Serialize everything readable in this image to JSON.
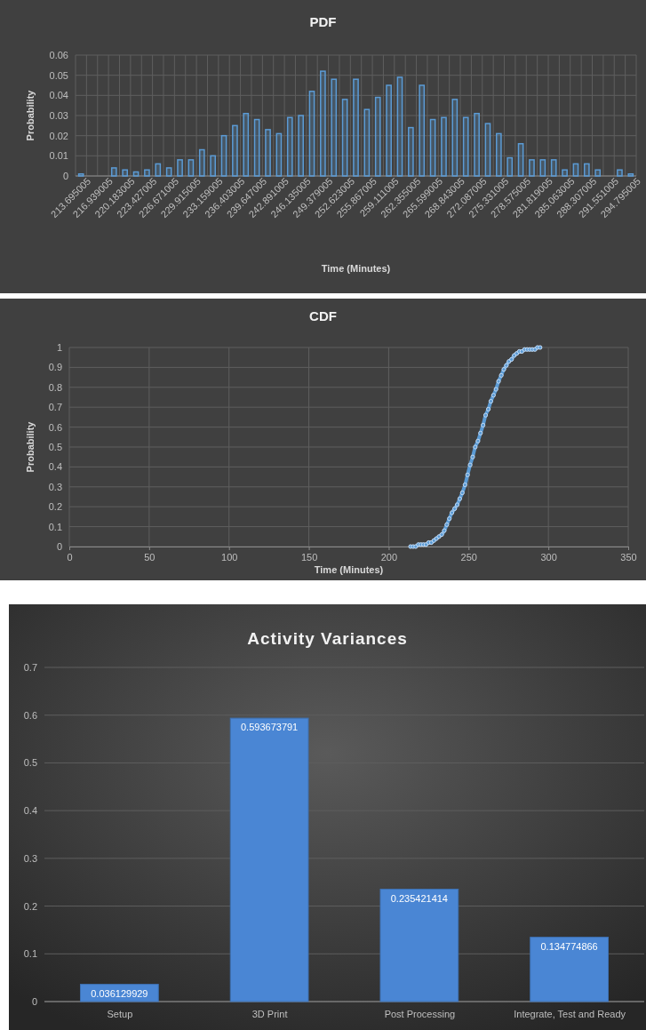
{
  "chart_data": [
    {
      "type": "bar",
      "title": "PDF",
      "xlabel": "Time (Minutes)",
      "ylabel": "Probability",
      "categories": [
        "213.695005",
        null,
        "216.939005",
        null,
        "220.183005",
        null,
        "223.427005",
        null,
        "226.671005",
        null,
        "229.915005",
        null,
        "233.159005",
        null,
        "236.403005",
        null,
        "239.647005",
        null,
        "242.891005",
        null,
        "246.135005",
        null,
        "249.379005",
        null,
        "252.623005",
        null,
        "255.867005",
        null,
        "259.111005",
        null,
        "262.355005",
        null,
        "265.599005",
        null,
        "268.843005",
        null,
        "272.087005",
        null,
        "275.331005",
        null,
        "278.575005",
        null,
        "281.819005",
        null,
        "285.063005",
        null,
        "288.307005",
        null,
        "291.551005",
        null,
        "294.795005"
      ],
      "values": [
        0.001,
        0,
        0,
        0.004,
        0.003,
        0.002,
        0.003,
        0.006,
        0.004,
        0.008,
        0.008,
        0.013,
        0.01,
        0.02,
        0.025,
        0.031,
        0.028,
        0.023,
        0.021,
        0.029,
        0.03,
        0.042,
        0.052,
        0.048,
        0.038,
        0.048,
        0.033,
        0.039,
        0.045,
        0.049,
        0.024,
        0.045,
        0.028,
        0.029,
        0.038,
        0.029,
        0.031,
        0.026,
        0.021,
        0.009,
        0.016,
        0.008,
        0.008,
        0.008,
        0.003,
        0.006,
        0.006,
        0.003,
        0,
        0.003,
        0.001
      ],
      "color": "#5b9bd5",
      "ylim": [
        0,
        0.06
      ],
      "yticks": [
        0,
        0.01,
        0.02,
        0.03,
        0.04,
        0.05,
        0.06
      ],
      "grid": true
    },
    {
      "type": "line",
      "title": "CDF",
      "xlabel": "Time (Minutes)",
      "ylabel": "Probability",
      "x": [
        213.7,
        215.3,
        216.9,
        218.6,
        220.2,
        221.8,
        223.4,
        225.0,
        226.7,
        228.3,
        229.9,
        231.5,
        233.2,
        234.8,
        236.4,
        238.0,
        239.6,
        241.3,
        242.9,
        244.5,
        246.1,
        247.8,
        249.4,
        251.0,
        252.6,
        254.2,
        255.9,
        257.5,
        259.1,
        260.7,
        262.4,
        264.0,
        265.6,
        267.2,
        268.8,
        270.5,
        272.1,
        273.7,
        275.3,
        276.9,
        278.6,
        280.2,
        281.8,
        283.4,
        285.1,
        286.7,
        288.3,
        289.9,
        291.6,
        293.2,
        294.8
      ],
      "values": [
        0,
        0,
        0,
        0.01,
        0.01,
        0.01,
        0.01,
        0.02,
        0.02,
        0.03,
        0.04,
        0.05,
        0.06,
        0.08,
        0.11,
        0.14,
        0.17,
        0.19,
        0.21,
        0.24,
        0.27,
        0.31,
        0.36,
        0.41,
        0.45,
        0.5,
        0.53,
        0.57,
        0.61,
        0.66,
        0.69,
        0.73,
        0.76,
        0.79,
        0.83,
        0.86,
        0.89,
        0.91,
        0.93,
        0.94,
        0.96,
        0.97,
        0.98,
        0.98,
        0.99,
        0.99,
        0.99,
        0.99,
        0.99,
        1.0,
        1.0
      ],
      "color": "#5b9bd5",
      "marker": "circle",
      "line_style": "solid",
      "xlim": [
        0,
        350
      ],
      "xticks": [
        0,
        50,
        100,
        150,
        200,
        250,
        300,
        350
      ],
      "ylim": [
        0,
        1
      ],
      "yticks": [
        0,
        0.1,
        0.2,
        0.3,
        0.4,
        0.5,
        0.6,
        0.7,
        0.8,
        0.9,
        1
      ],
      "grid": true
    },
    {
      "type": "bar",
      "title": "Activity Variances",
      "categories": [
        "Setup",
        "3D Print",
        "Post Processing",
        "Integrate, Test and Ready"
      ],
      "values": [
        0.036129929,
        0.593673791,
        0.235421414,
        0.134774866
      ],
      "color": "#4a86d4",
      "data_labels": true,
      "ylim": [
        0,
        0.7
      ],
      "yticks": [
        0,
        0.1,
        0.2,
        0.3,
        0.4,
        0.5,
        0.6,
        0.7
      ],
      "grid": "y"
    }
  ]
}
